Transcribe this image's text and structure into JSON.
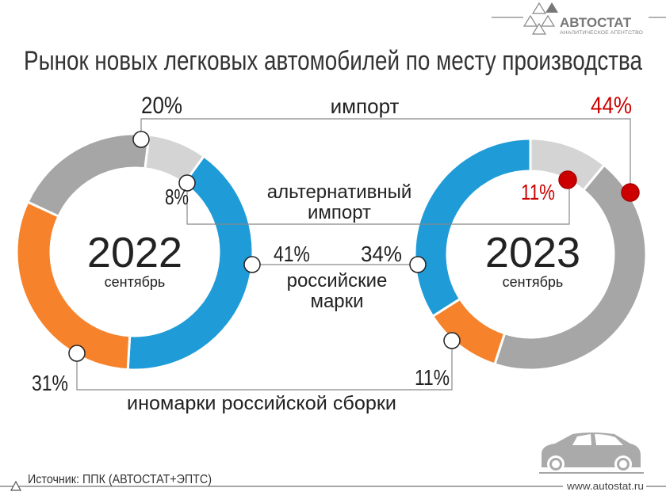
{
  "logo": {
    "name": "АВТОСТАТ",
    "tagline": "АНАЛИТИЧЕСКОЕ АГЕНТСТВО"
  },
  "title": "Рынок новых легковых автомобилей по месту производства",
  "colors": {
    "blue": "#1f9bd7",
    "orange": "#f6822b",
    "gray": "#a6a6a6",
    "light_gray": "#d4d4d4",
    "red": "#cc0000",
    "line": "#888888"
  },
  "chart_data": [
    {
      "type": "pie",
      "donut": true,
      "center_label": "2022",
      "center_sublabel": "сентябрь",
      "slices": [
        {
          "name": "импорт",
          "value": 20,
          "label": "20%",
          "color": "#a6a6a6"
        },
        {
          "name": "альтернативный импорт",
          "value": 8,
          "label": "8%",
          "color": "#d4d4d4"
        },
        {
          "name": "российские марки",
          "value": 41,
          "label": "41%",
          "color": "#1f9bd7"
        },
        {
          "name": "иномарки российской сборки",
          "value": 31,
          "label": "31%",
          "color": "#f6822b"
        }
      ]
    },
    {
      "type": "pie",
      "donut": true,
      "center_label": "2023",
      "center_sublabel": "сентябрь",
      "slices": [
        {
          "name": "альтернативный импорт",
          "value": 11,
          "label": "11%",
          "color": "#d4d4d4"
        },
        {
          "name": "импорт",
          "value": 44,
          "label": "44%",
          "color": "#a6a6a6"
        },
        {
          "name": "иномарки российской сборки",
          "value": 11,
          "label": "11%",
          "color": "#f6822b"
        },
        {
          "name": "российские марки",
          "value": 34,
          "label": "34%",
          "color": "#1f9bd7"
        }
      ]
    }
  ],
  "categories": {
    "import": "импорт",
    "alt_import_line1": "альтернативный",
    "alt_import_line2": "импорт",
    "russian_brands_line1": "российские",
    "russian_brands_line2": "марки",
    "foreign_assembled": "иномарки российской сборки"
  },
  "footer": {
    "source": "Источник: ППК (АВТОСТАТ+ЭПТС)",
    "website": "www.autostat.ru"
  }
}
